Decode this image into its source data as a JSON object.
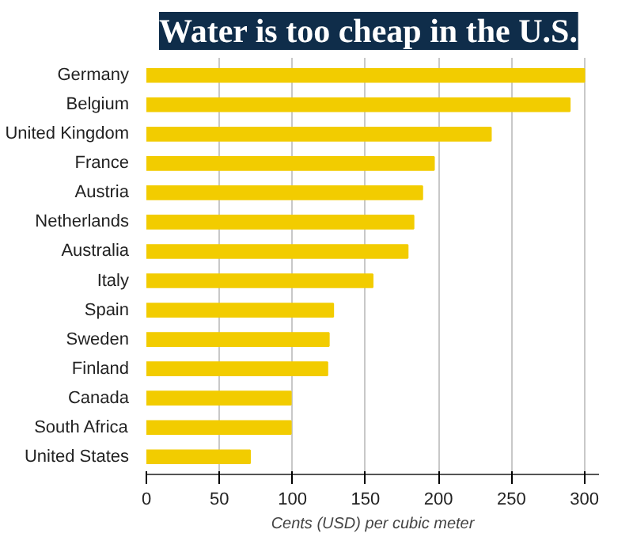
{
  "chart_data": {
    "type": "bar",
    "orientation": "horizontal",
    "title": "Water is too cheap in the U.S.",
    "xlabel": "Cents (USD) per cubic meter",
    "categories": [
      "Germany",
      "Belgium",
      "United Kingdom",
      "France",
      "Austria",
      "Netherlands",
      "Australia",
      "Italy",
      "Spain",
      "Sweden",
      "Finland",
      "Canada",
      "South Africa",
      "United States"
    ],
    "values": [
      300,
      290,
      236,
      197,
      189,
      183,
      179,
      155,
      128,
      125,
      124,
      99,
      99,
      71
    ],
    "color": "#f2cc00",
    "xlim": [
      0,
      310
    ],
    "xticks": [
      0,
      50,
      100,
      150,
      200,
      250,
      300
    ],
    "grid": "x"
  }
}
